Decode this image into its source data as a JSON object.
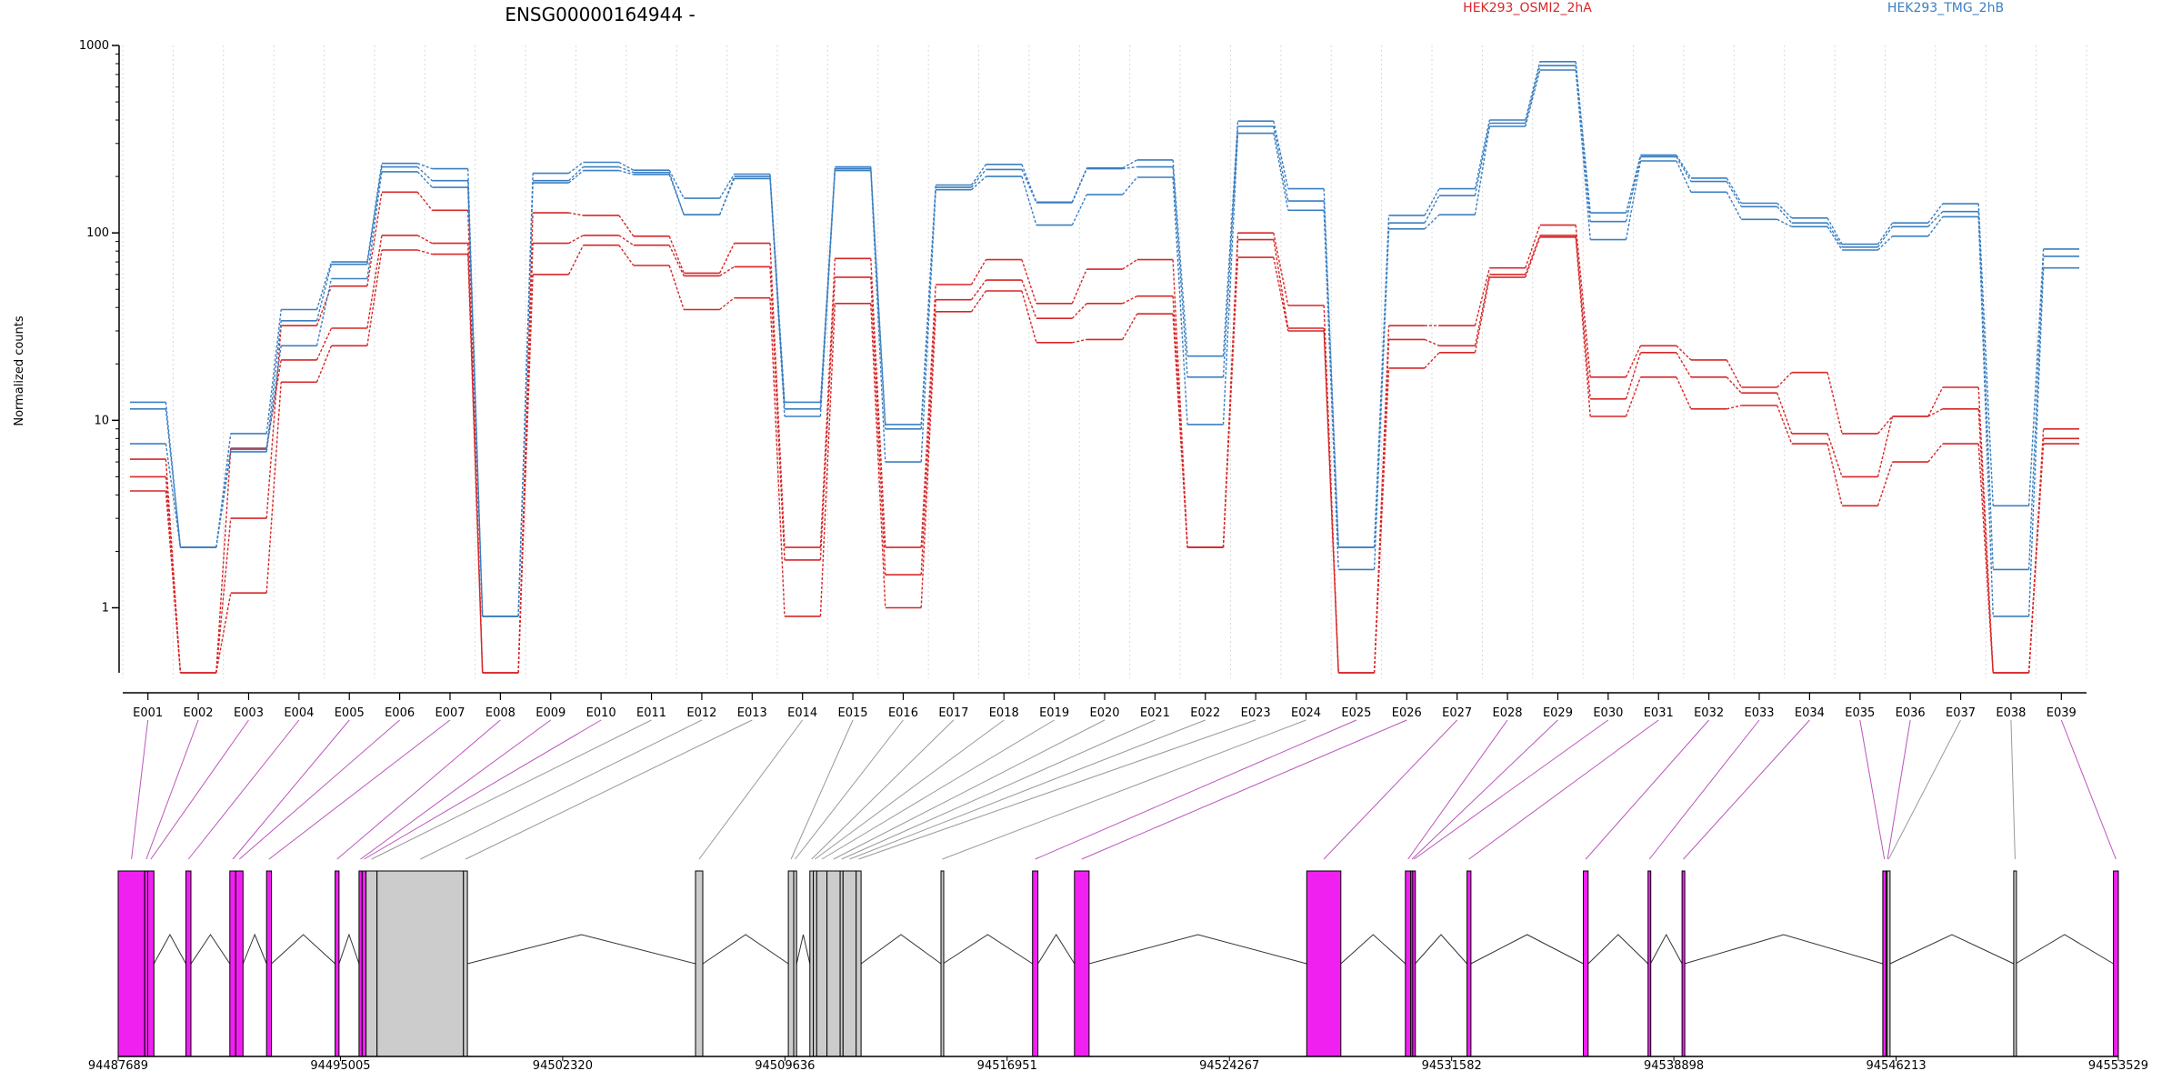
{
  "chart_data": {
    "type": "line",
    "title": "ENSG00000164944 -",
    "ylabel": "Normalized counts",
    "y_scale": "log",
    "ylim": [
      0.45,
      1000
    ],
    "yticks": [
      {
        "value": 1,
        "label": "1"
      },
      {
        "value": 10,
        "label": "10"
      },
      {
        "value": 100,
        "label": "100"
      },
      {
        "value": 1000,
        "label": "1000"
      }
    ],
    "grid": "vertical dotted",
    "legend": "top",
    "categories": [
      "E001",
      "E002",
      "E003",
      "E004",
      "E005",
      "E006",
      "E007",
      "E008",
      "E009",
      "E010",
      "E011",
      "E012",
      "E013",
      "E014",
      "E015",
      "E016",
      "E017",
      "E018",
      "E019",
      "E020",
      "E021",
      "E022",
      "E023",
      "E024",
      "E025",
      "E026",
      "E027",
      "E028",
      "E029",
      "E030",
      "E031",
      "E032",
      "E033",
      "E034",
      "E035",
      "E036",
      "E037",
      "E038",
      "E039"
    ],
    "groups": [
      {
        "name": "HEK293_OSMI2_2hA",
        "color": "#d62728",
        "replicates": [
          [
            6.2,
            0.45,
            3.0,
            32,
            52,
            165,
            132,
            0.45,
            128,
            124,
            96,
            61,
            88,
            2.1,
            73,
            2.1,
            53,
            72,
            42,
            64,
            72,
            2.1,
            100,
            41,
            0.45,
            32,
            32,
            65,
            110,
            17,
            25,
            21,
            15,
            18,
            8.5,
            10.5,
            15,
            0.45,
            9
          ],
          [
            5.0,
            0.45,
            7.1,
            21,
            31,
            97,
            88,
            0.45,
            88,
            97,
            86,
            59,
            66,
            1.8,
            58,
            1.5,
            44,
            56,
            35,
            42,
            46,
            2.1,
            92,
            31,
            0.45,
            27,
            25,
            60,
            97,
            13,
            23,
            17,
            14,
            8.5,
            5,
            10.5,
            11.5,
            0.45,
            8
          ],
          [
            4.2,
            0.45,
            1.2,
            16,
            25,
            81,
            77,
            0.45,
            60,
            86,
            67,
            39,
            45,
            0.9,
            42,
            1.0,
            38,
            49,
            26,
            27,
            37,
            2.1,
            74,
            30,
            0.45,
            19,
            23,
            58,
            95,
            10.5,
            17,
            11.5,
            12,
            7.5,
            3.5,
            6,
            7.5,
            0.45,
            7.5
          ]
        ]
      },
      {
        "name": "HEK293_TMG_2hB",
        "color": "#3a7fc1",
        "replicates": [
          [
            12.5,
            2.1,
            8.5,
            39,
            70,
            235,
            220,
            0.9,
            208,
            238,
            216,
            153,
            206,
            12.5,
            225,
            9.5,
            180,
            232,
            146,
            222,
            245,
            22,
            395,
            172,
            2.1,
            124,
            172,
            400,
            820,
            128,
            260,
            196,
            144,
            120,
            87,
            113,
            143,
            3.5,
            82
          ],
          [
            11.5,
            2.1,
            7.0,
            34,
            68,
            225,
            190,
            0.9,
            190,
            225,
            210,
            125,
            200,
            11.5,
            220,
            9,
            175,
            218,
            145,
            220,
            225,
            17,
            370,
            148,
            2.1,
            113,
            158,
            385,
            780,
            115,
            255,
            188,
            138,
            113,
            84,
            108,
            130,
            1.6,
            75
          ],
          [
            7.5,
            2.1,
            6.8,
            25,
            57,
            212,
            175,
            0.9,
            185,
            215,
            205,
            125,
            195,
            10.5,
            215,
            6,
            170,
            200,
            110,
            160,
            198,
            9.5,
            340,
            132,
            1.6,
            105,
            125,
            370,
            740,
            92,
            242,
            165,
            118,
            108,
            81,
            96,
            122,
            0.9,
            65
          ]
        ]
      }
    ],
    "gene_model": {
      "start": 94487689,
      "end": 94553529,
      "ticks": [
        {
          "value": 94487689,
          "label": "94487689"
        },
        {
          "value": 94495005,
          "label": "94495005"
        },
        {
          "value": 94502320,
          "label": "94502320"
        },
        {
          "value": 94509636,
          "label": "94509636"
        },
        {
          "value": 94516951,
          "label": "94516951"
        },
        {
          "value": 94524267,
          "label": "94524267"
        },
        {
          "value": 94531582,
          "label": "94531582"
        },
        {
          "value": 94538898,
          "label": "94538898"
        },
        {
          "value": 94546213,
          "label": "94546213"
        },
        {
          "value": 94553529,
          "label": "94553529"
        }
      ],
      "exons": [
        {
          "id": "E001",
          "start": 94487689,
          "end": 94488564,
          "significant": true
        },
        {
          "id": "E002",
          "start": 94488564,
          "end": 94488661,
          "significant": true
        },
        {
          "id": "E003",
          "start": 94488661,
          "end": 94488866,
          "significant": true
        },
        {
          "id": "E004",
          "start": 94489920,
          "end": 94490086,
          "significant": true
        },
        {
          "id": "E005",
          "start": 94491365,
          "end": 94491558,
          "significant": true
        },
        {
          "id": "E006",
          "start": 94491558,
          "end": 94491798,
          "significant": true
        },
        {
          "id": "E007",
          "start": 94492573,
          "end": 94492734,
          "significant": true
        },
        {
          "id": "E008",
          "start": 94494829,
          "end": 94494958,
          "significant": true
        },
        {
          "id": "E009",
          "start": 94495616,
          "end": 94495719,
          "significant": true
        },
        {
          "id": "E010",
          "start": 94495719,
          "end": 94495848,
          "significant": true
        },
        {
          "id": "E011",
          "start": 94495848,
          "end": 94496209,
          "significant": false
        },
        {
          "id": "E012",
          "start": 94496209,
          "end": 94499056,
          "significant": false
        },
        {
          "id": "E013",
          "start": 94499056,
          "end": 94499185,
          "significant": false
        },
        {
          "id": "E014",
          "start": 94506694,
          "end": 94506934,
          "significant": false
        },
        {
          "id": "E015",
          "start": 94509749,
          "end": 94509926,
          "significant": false
        },
        {
          "id": "E016",
          "start": 94509926,
          "end": 94510022,
          "significant": false
        },
        {
          "id": "E017",
          "start": 94510457,
          "end": 94510570,
          "significant": false
        },
        {
          "id": "E018",
          "start": 94510570,
          "end": 94510683,
          "significant": false
        },
        {
          "id": "E019",
          "start": 94510683,
          "end": 94511020,
          "significant": false
        },
        {
          "id": "E020",
          "start": 94511020,
          "end": 94511453,
          "significant": false
        },
        {
          "id": "E021",
          "start": 94511453,
          "end": 94511549,
          "significant": false
        },
        {
          "id": "E022",
          "start": 94511549,
          "end": 94511982,
          "significant": false
        },
        {
          "id": "E023",
          "start": 94511982,
          "end": 94512143,
          "significant": false
        },
        {
          "id": "E024",
          "start": 94514772,
          "end": 94514836,
          "significant": false
        },
        {
          "id": "E025",
          "start": 94517787,
          "end": 94517964,
          "significant": true
        },
        {
          "id": "E026",
          "start": 94519166,
          "end": 94519647,
          "significant": true
        },
        {
          "id": "E027",
          "start": 94526812,
          "end": 94527934,
          "significant": true
        },
        {
          "id": "E028",
          "start": 94530059,
          "end": 94530235,
          "significant": true
        },
        {
          "id": "E029",
          "start": 94530235,
          "end": 94530300,
          "significant": true
        },
        {
          "id": "E030",
          "start": 94530300,
          "end": 94530380,
          "significant": true
        },
        {
          "id": "E031",
          "start": 94532088,
          "end": 94532216,
          "significant": true
        },
        {
          "id": "E032",
          "start": 94535918,
          "end": 94536078,
          "significant": true
        },
        {
          "id": "E033",
          "start": 94538047,
          "end": 94538127,
          "significant": true
        },
        {
          "id": "E034",
          "start": 94539168,
          "end": 94539248,
          "significant": true
        },
        {
          "id": "E035",
          "start": 94545774,
          "end": 94545886,
          "significant": true
        },
        {
          "id": "E036",
          "start": 94545886,
          "end": 94545918,
          "significant": true
        },
        {
          "id": "E037",
          "start": 94545918,
          "end": 94546015,
          "significant": false
        },
        {
          "id": "E038",
          "start": 94550084,
          "end": 94550148,
          "significant": false
        },
        {
          "id": "E039",
          "start": 94553368,
          "end": 94553529,
          "significant": true
        }
      ]
    }
  },
  "colors": {
    "significant_exon": "#f020f0",
    "normal_exon": "#cccccc",
    "significant_connector": "#bb55bb",
    "normal_connector": "#999999",
    "grid": "#d8d8d8"
  }
}
